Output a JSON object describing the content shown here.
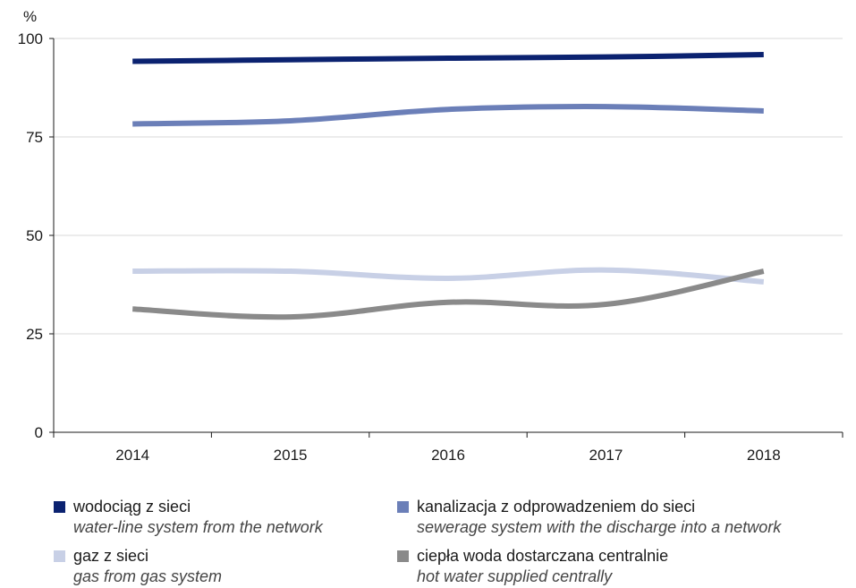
{
  "chart_data": {
    "type": "line",
    "title": "",
    "xlabel": "",
    "ylabel": "%",
    "ylim": [
      0,
      100
    ],
    "yticks": [
      "0",
      "25",
      "50",
      "75",
      "100"
    ],
    "categories": [
      "2014",
      "2015",
      "2016",
      "2017",
      "2018"
    ],
    "grid": true,
    "legend_position": "bottom",
    "series": [
      {
        "name": "wodociąg z sieci",
        "description": "water-line system from the network",
        "color": "#0b2270",
        "values": [
          94.2,
          94.6,
          95.0,
          95.3,
          95.9
        ]
      },
      {
        "name": "kanalizacja z odprowadzeniem do sieci",
        "description": "sewerage system with the discharge into a network",
        "color": "#6b7fb8",
        "values": [
          78.3,
          79.1,
          82.0,
          82.7,
          81.6
        ]
      },
      {
        "name": "gaz z sieci",
        "description": "gas from gas system",
        "color": "#c8d0e6",
        "values": [
          40.9,
          40.9,
          39.1,
          41.2,
          38.2
        ]
      },
      {
        "name": "ciepła woda dostarczana centralnie",
        "description": "hot water supplied centrally",
        "color": "#8a8a8a",
        "values": [
          31.3,
          29.3,
          33.0,
          32.5,
          40.9
        ]
      }
    ]
  }
}
